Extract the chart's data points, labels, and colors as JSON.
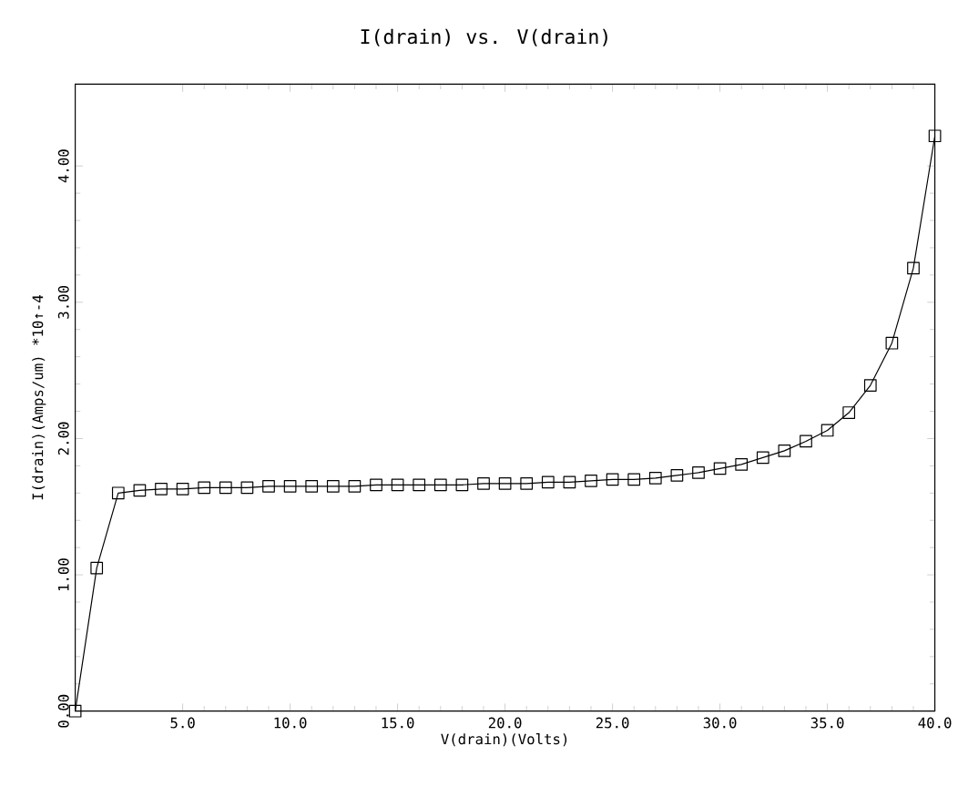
{
  "chart_data": {
    "type": "line",
    "title": "I(drain) vs. V(drain)",
    "xlabel": "V(drain)(Volts)",
    "ylabel": "I(drain)(Amps/um) *10↑-4",
    "marker": "square",
    "grid": false,
    "xlim": [
      0,
      40
    ],
    "ylim": [
      0,
      4.6
    ],
    "xticks": [
      {
        "value": 5,
        "label": "5.0"
      },
      {
        "value": 10,
        "label": "10.0"
      },
      {
        "value": 15,
        "label": "15.0"
      },
      {
        "value": 20,
        "label": "20.0"
      },
      {
        "value": 25,
        "label": "25.0"
      },
      {
        "value": 30,
        "label": "30.0"
      },
      {
        "value": 35,
        "label": "35.0"
      },
      {
        "value": 40,
        "label": "40.0"
      }
    ],
    "yticks": [
      {
        "value": 0,
        "label": "0.00"
      },
      {
        "value": 1,
        "label": "1.00"
      },
      {
        "value": 2,
        "label": "2.00"
      },
      {
        "value": 3,
        "label": "3.00"
      },
      {
        "value": 4,
        "label": "4.00"
      }
    ],
    "x": [
      0,
      1,
      2,
      3,
      4,
      5,
      6,
      7,
      8,
      9,
      10,
      11,
      12,
      13,
      14,
      15,
      16,
      17,
      18,
      19,
      20,
      21,
      22,
      23,
      24,
      25,
      26,
      27,
      28,
      29,
      30,
      31,
      32,
      33,
      34,
      35,
      36,
      37,
      38,
      39,
      40
    ],
    "series": [
      {
        "color": "#000000",
        "values": [
          0.0,
          1.05,
          1.6,
          1.62,
          1.63,
          1.63,
          1.64,
          1.64,
          1.64,
          1.65,
          1.65,
          1.65,
          1.65,
          1.65,
          1.66,
          1.66,
          1.66,
          1.66,
          1.66,
          1.67,
          1.67,
          1.67,
          1.68,
          1.68,
          1.69,
          1.7,
          1.7,
          1.71,
          1.73,
          1.75,
          1.78,
          1.81,
          1.86,
          1.91,
          1.98,
          2.06,
          2.19,
          2.39,
          2.7,
          3.25,
          4.22
        ]
      }
    ]
  }
}
